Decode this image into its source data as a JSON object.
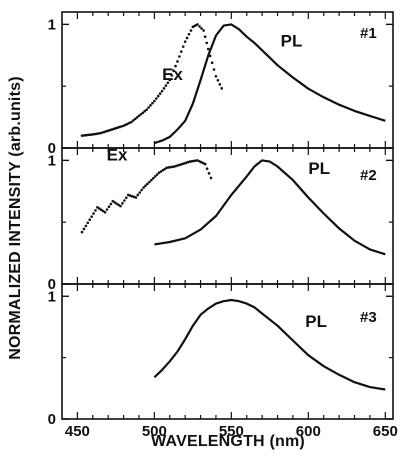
{
  "chart_data": {
    "type": "line",
    "xlabel": "WAVELENGTH (nm)",
    "ylabel": "NORMALIZED INTENSITY (arb.units)",
    "xlim": [
      440,
      655
    ],
    "x_ticks": [
      450,
      500,
      550,
      600,
      650
    ],
    "y_ticks": [
      0,
      1
    ],
    "panels": [
      {
        "id": "#1",
        "ylim": [
          0,
          1.1
        ],
        "annotations": [
          {
            "text": "Ex",
            "x": 505,
            "y": 0.55
          },
          {
            "text": "PL",
            "x": 582,
            "y": 0.82
          }
        ],
        "series": [
          {
            "name": "Ex",
            "style": "dotted",
            "x": [
              453,
              460,
              465,
              470,
              475,
              480,
              485,
              490,
              495,
              500,
              505,
              510,
              515,
              520,
              525,
              528,
              532,
              535,
              540,
              545
            ],
            "y": [
              0.1,
              0.11,
              0.12,
              0.14,
              0.16,
              0.18,
              0.21,
              0.26,
              0.31,
              0.38,
              0.46,
              0.55,
              0.7,
              0.86,
              0.98,
              1.0,
              0.95,
              0.8,
              0.58,
              0.45
            ]
          },
          {
            "name": "PL",
            "style": "solid",
            "x": [
              500,
              505,
              510,
              515,
              520,
              525,
              530,
              535,
              540,
              545,
              550,
              555,
              560,
              565,
              570,
              575,
              580,
              590,
              600,
              610,
              620,
              630,
              640,
              650
            ],
            "y": [
              0.04,
              0.06,
              0.09,
              0.15,
              0.22,
              0.36,
              0.55,
              0.75,
              0.91,
              0.99,
              1.0,
              0.96,
              0.9,
              0.85,
              0.79,
              0.73,
              0.67,
              0.57,
              0.48,
              0.41,
              0.35,
              0.3,
              0.26,
              0.22
            ]
          }
        ]
      },
      {
        "id": "#2",
        "ylim": [
          0,
          1.1
        ],
        "annotations": [
          {
            "text": "Ex",
            "x": 469,
            "y": 1.0
          },
          {
            "text": "PL",
            "x": 600,
            "y": 0.89
          }
        ],
        "series": [
          {
            "name": "Ex",
            "style": "dotted",
            "x": [
              453,
              458,
              463,
              468,
              473,
              478,
              483,
              488,
              493,
              498,
              503,
              508,
              513,
              518,
              523,
              528,
              533,
              538
            ],
            "y": [
              0.42,
              0.52,
              0.62,
              0.58,
              0.67,
              0.63,
              0.72,
              0.7,
              0.78,
              0.84,
              0.9,
              0.94,
              0.95,
              0.97,
              0.99,
              1.0,
              0.97,
              0.82
            ]
          },
          {
            "name": "PL",
            "style": "solid",
            "x": [
              500,
              510,
              520,
              530,
              540,
              550,
              560,
              565,
              570,
              575,
              580,
              590,
              600,
              610,
              620,
              630,
              640,
              650
            ],
            "y": [
              0.32,
              0.34,
              0.37,
              0.44,
              0.55,
              0.72,
              0.87,
              0.95,
              1.0,
              0.99,
              0.95,
              0.84,
              0.7,
              0.57,
              0.45,
              0.35,
              0.28,
              0.24
            ]
          }
        ]
      },
      {
        "id": "#3",
        "ylim": [
          0,
          1.1
        ],
        "annotations": [
          {
            "text": "PL",
            "x": 598,
            "y": 0.75
          }
        ],
        "series": [
          {
            "name": "PL",
            "style": "solid",
            "x": [
              500,
              505,
              510,
              515,
              520,
              525,
              530,
              535,
              540,
              545,
              550,
              555,
              560,
              565,
              570,
              580,
              590,
              600,
              610,
              620,
              630,
              640,
              650
            ],
            "y": [
              0.34,
              0.4,
              0.47,
              0.55,
              0.65,
              0.76,
              0.85,
              0.9,
              0.94,
              0.96,
              0.97,
              0.96,
              0.94,
              0.91,
              0.86,
              0.76,
              0.64,
              0.52,
              0.43,
              0.36,
              0.3,
              0.26,
              0.24
            ]
          }
        ]
      }
    ]
  }
}
